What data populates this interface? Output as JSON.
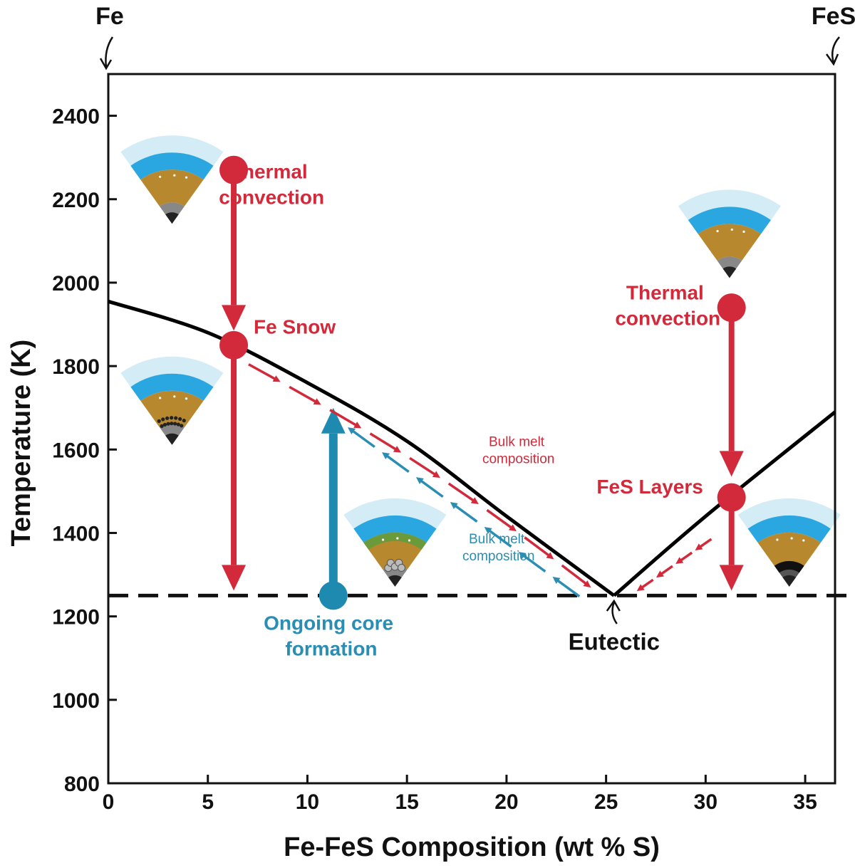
{
  "chart_data": {
    "type": "line",
    "title": "",
    "xlabel": "Fe-FeS Composition (wt % S)",
    "ylabel": "Temperature (K)",
    "xlim": [
      0,
      36.5
    ],
    "ylim": [
      800,
      2500
    ],
    "x_ticks": [
      0,
      5,
      10,
      15,
      20,
      25,
      30,
      35
    ],
    "y_ticks": [
      800,
      1000,
      1200,
      1400,
      1600,
      1800,
      2000,
      2200,
      2400
    ],
    "grid": false,
    "end_labels": {
      "left": "Fe",
      "right": "FeS"
    },
    "series": [
      {
        "values_x": [
          0,
          5,
          10,
          15,
          20,
          25.4
        ],
        "values_y": [
          1955,
          1880,
          1760,
          1620,
          1440,
          1250
        ]
      },
      {
        "values_x": [
          25.4,
          30,
          36.5
        ],
        "values_y": [
          1250,
          1440,
          1690
        ]
      }
    ],
    "eutectic_line": {
      "y": 1250
    },
    "annotations": {
      "thermal_convection_left": {
        "lines": [
          "Thermal",
          "convection"
        ],
        "x": 8.2,
        "y": 2250
      },
      "fe_snow": {
        "text": "Fe Snow",
        "x": 7.3,
        "y": 1878
      },
      "bulk_melt_red": {
        "lines": [
          "Bulk melt",
          "composition"
        ],
        "x": 20.6,
        "y": 1608
      },
      "bulk_melt_blue": {
        "lines": [
          "Bulk melt",
          "composition"
        ],
        "x": 19.6,
        "y": 1375
      },
      "ongoing_core": {
        "lines": [
          "Ongoing core",
          "formation"
        ],
        "x": 11.2,
        "y": 1168
      },
      "eutectic": {
        "text": "Eutectic",
        "x": 25.4,
        "y": 1120
      },
      "thermal_convection_right": {
        "lines": [
          "Thermal",
          "convection"
        ],
        "x": 28.1,
        "y": 1960
      },
      "fes_layers": {
        "text": "FeS Layers",
        "x": 27.2,
        "y": 1495
      }
    },
    "markers": [
      {
        "x": 6.3,
        "y": 2270,
        "color": "#d22a3a"
      },
      {
        "x": 6.3,
        "y": 1850,
        "color": "#d22a3a"
      },
      {
        "x": 31.3,
        "y": 1940,
        "color": "#d22a3a"
      },
      {
        "x": 31.3,
        "y": 1485,
        "color": "#d22a3a"
      },
      {
        "x": 11.3,
        "y": 1250,
        "color": "#1f8ab0"
      }
    ],
    "vertical_arrows": [
      {
        "x": 6.3,
        "from": 2270,
        "to": 1885,
        "color": "#d22a3a"
      },
      {
        "x": 6.3,
        "from": 1850,
        "to": 1262,
        "color": "#d22a3a"
      },
      {
        "x": 31.3,
        "from": 1940,
        "to": 1535,
        "color": "#d22a3a"
      },
      {
        "x": 31.3,
        "from": 1485,
        "to": 1262,
        "color": "#d22a3a"
      },
      {
        "x": 11.3,
        "from": 1250,
        "to": 1700,
        "color": "#1f8ab0"
      }
    ],
    "dashed_arrows": [
      {
        "from_x": 7.4,
        "from_y": 1830,
        "to_x": 25.0,
        "to_y": 1280,
        "color": "#d22a3a",
        "offset": 18
      },
      {
        "from_x": 24.0,
        "from_y": 1270,
        "to_x": 12.0,
        "to_y": 1688,
        "color": "#2a8db3",
        "offset": -16
      },
      {
        "from_x": 30.0,
        "from_y": 1405,
        "to_x": 26.1,
        "to_y": 1275,
        "color": "#d22a3a",
        "offset": -14
      }
    ],
    "core_icons": [
      {
        "x": 3.2,
        "y": 2230,
        "core": "grey"
      },
      {
        "x": 3.2,
        "y": 1700,
        "core": "snow"
      },
      {
        "x": 31.2,
        "y": 2100,
        "core": "grey"
      },
      {
        "x": 14.4,
        "y": 1360,
        "core": "green"
      },
      {
        "x": 34.2,
        "y": 1360,
        "core": "layered"
      }
    ],
    "colors": {
      "red": "#d22a3a",
      "blue": "#2a8db3",
      "curve": "#000000",
      "ice": "#d3ecf5",
      "ocean": "#2aa7e0",
      "mantle": "#b8882f"
    }
  }
}
